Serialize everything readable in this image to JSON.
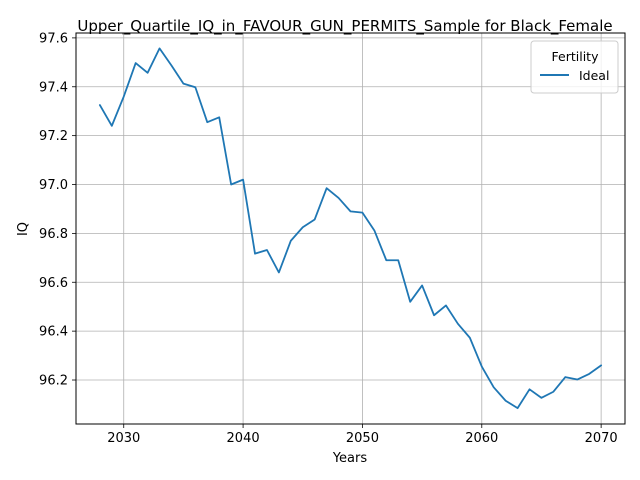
{
  "chart_data": {
    "type": "line",
    "title": "Upper_Quartile_IQ_in_FAVOUR_GUN_PERMITS_Sample for Black_Female",
    "xlabel": "Years",
    "ylabel": "IQ",
    "xlim": [
      2026,
      2072
    ],
    "ylim": [
      96.02,
      97.62
    ],
    "xticks": [
      2030,
      2040,
      2050,
      2060,
      2070
    ],
    "yticks": [
      96.2,
      96.4,
      96.6,
      96.8,
      97.0,
      97.2,
      97.4,
      97.6
    ],
    "xtick_labels": [
      "2030",
      "2040",
      "2050",
      "2060",
      "2070"
    ],
    "ytick_labels": [
      "96.2",
      "96.4",
      "96.6",
      "96.8",
      "97.0",
      "97.2",
      "97.4",
      "97.6"
    ],
    "grid": true,
    "legend": {
      "title": "Fertility",
      "position": "top-right"
    },
    "series": [
      {
        "name": "Ideal",
        "color": "#1f77b4",
        "x": [
          2028,
          2029,
          2030,
          2031,
          2032,
          2033,
          2034,
          2035,
          2036,
          2037,
          2038,
          2039,
          2040,
          2041,
          2042,
          2043,
          2044,
          2045,
          2046,
          2047,
          2048,
          2049,
          2050,
          2051,
          2052,
          2053,
          2054,
          2055,
          2056,
          2057,
          2058,
          2059,
          2060,
          2061,
          2062,
          2063,
          2064,
          2065,
          2066,
          2067,
          2068,
          2069,
          2070
        ],
        "y": [
          97.325,
          97.24,
          97.36,
          97.497,
          97.457,
          97.557,
          97.487,
          97.413,
          97.398,
          97.255,
          97.275,
          97.0,
          97.02,
          96.717,
          96.732,
          96.64,
          96.77,
          96.825,
          96.857,
          96.985,
          96.945,
          96.89,
          96.885,
          96.812,
          96.69,
          96.69,
          96.52,
          96.587,
          96.465,
          96.505,
          96.43,
          96.373,
          96.255,
          96.17,
          96.115,
          96.085,
          96.162,
          96.127,
          96.152,
          96.212,
          96.202,
          96.225,
          96.26
        ]
      }
    ]
  }
}
